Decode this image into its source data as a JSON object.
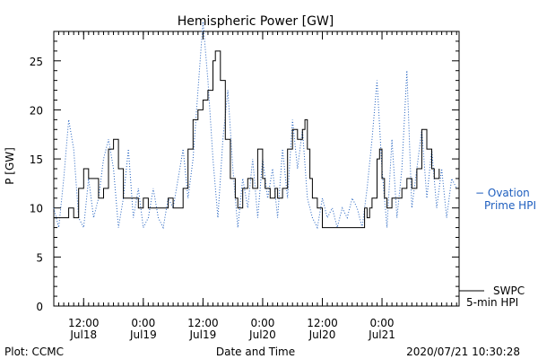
{
  "chart_data": {
    "type": "line",
    "title": "Hemispheric Power [GW]",
    "ylabel": "P [GW]",
    "xlabel": "Date and Time",
    "ylim": [
      0,
      28
    ],
    "yticks": [
      0,
      5,
      10,
      15,
      20,
      25
    ],
    "x_time_range": [
      "2020-07-18T06:00",
      "2020-07-21T15:30"
    ],
    "xticks": [
      {
        "top": "12:00",
        "bottom": "Jul18",
        "t": "2020-07-18T12:00"
      },
      {
        "top": "0:00",
        "bottom": "Jul19",
        "t": "2020-07-19T00:00"
      },
      {
        "top": "12:00",
        "bottom": "Jul19",
        "t": "2020-07-19T12:00"
      },
      {
        "top": "0:00",
        "bottom": "Jul20",
        "t": "2020-07-20T00:00"
      },
      {
        "top": "12:00",
        "bottom": "Jul20",
        "t": "2020-07-20T12:00"
      },
      {
        "top": "0:00",
        "bottom": "Jul21",
        "t": "2020-07-21T00:00"
      }
    ],
    "grid": false,
    "series": [
      {
        "name_lines": [
          "SWPC",
          "5-min HPI"
        ],
        "color": "#000000",
        "style": "solid",
        "points": [
          [
            "2020-07-18T06:00",
            9
          ],
          [
            "2020-07-18T08:00",
            9
          ],
          [
            "2020-07-18T09:00",
            10
          ],
          [
            "2020-07-18T10:00",
            9
          ],
          [
            "2020-07-18T11:00",
            12
          ],
          [
            "2020-07-18T12:00",
            14
          ],
          [
            "2020-07-18T13:00",
            13
          ],
          [
            "2020-07-18T14:00",
            13
          ],
          [
            "2020-07-18T15:00",
            11
          ],
          [
            "2020-07-18T16:00",
            12
          ],
          [
            "2020-07-18T17:00",
            16
          ],
          [
            "2020-07-18T18:00",
            17
          ],
          [
            "2020-07-18T19:00",
            14
          ],
          [
            "2020-07-18T20:00",
            11
          ],
          [
            "2020-07-18T22:00",
            11
          ],
          [
            "2020-07-18T23:00",
            10
          ],
          [
            "2020-07-19T00:00",
            11
          ],
          [
            "2020-07-19T01:00",
            10
          ],
          [
            "2020-07-19T02:00",
            10
          ],
          [
            "2020-07-19T03:00",
            10
          ],
          [
            "2020-07-19T04:00",
            10
          ],
          [
            "2020-07-19T05:00",
            11
          ],
          [
            "2020-07-19T06:00",
            10
          ],
          [
            "2020-07-19T07:00",
            10
          ],
          [
            "2020-07-19T08:00",
            12
          ],
          [
            "2020-07-19T09:00",
            16
          ],
          [
            "2020-07-19T10:00",
            19
          ],
          [
            "2020-07-19T11:00",
            20
          ],
          [
            "2020-07-19T12:00",
            21
          ],
          [
            "2020-07-19T13:00",
            22
          ],
          [
            "2020-07-19T14:00",
            25
          ],
          [
            "2020-07-19T14:30",
            26
          ],
          [
            "2020-07-19T15:30",
            23
          ],
          [
            "2020-07-19T16:30",
            17
          ],
          [
            "2020-07-19T17:30",
            13
          ],
          [
            "2020-07-19T18:30",
            11
          ],
          [
            "2020-07-19T19:00",
            10
          ],
          [
            "2020-07-19T20:00",
            12
          ],
          [
            "2020-07-19T21:00",
            13
          ],
          [
            "2020-07-19T22:00",
            12
          ],
          [
            "2020-07-19T23:00",
            16
          ],
          [
            "2020-07-20T00:00",
            13
          ],
          [
            "2020-07-20T00:30",
            12
          ],
          [
            "2020-07-20T01:30",
            11
          ],
          [
            "2020-07-20T02:30",
            12
          ],
          [
            "2020-07-20T03:00",
            11
          ],
          [
            "2020-07-20T04:00",
            12
          ],
          [
            "2020-07-20T05:00",
            16
          ],
          [
            "2020-07-20T06:00",
            18
          ],
          [
            "2020-07-20T07:00",
            17
          ],
          [
            "2020-07-20T08:00",
            18
          ],
          [
            "2020-07-20T08:30",
            19
          ],
          [
            "2020-07-20T09:00",
            16
          ],
          [
            "2020-07-20T09:30",
            13
          ],
          [
            "2020-07-20T10:00",
            11
          ],
          [
            "2020-07-20T11:00",
            10
          ],
          [
            "2020-07-20T12:00",
            8
          ],
          [
            "2020-07-20T16:00",
            8
          ],
          [
            "2020-07-20T20:00",
            8
          ],
          [
            "2020-07-20T20:30",
            10
          ],
          [
            "2020-07-20T21:00",
            9
          ],
          [
            "2020-07-20T21:30",
            10
          ],
          [
            "2020-07-20T22:00",
            11
          ],
          [
            "2020-07-20T23:00",
            15
          ],
          [
            "2020-07-20T23:30",
            16
          ],
          [
            "2020-07-21T00:00",
            13
          ],
          [
            "2020-07-21T00:30",
            11
          ],
          [
            "2020-07-21T01:00",
            10
          ],
          [
            "2020-07-21T02:00",
            11
          ],
          [
            "2020-07-21T03:00",
            11
          ],
          [
            "2020-07-21T04:00",
            12
          ],
          [
            "2020-07-21T05:00",
            13
          ],
          [
            "2020-07-21T06:00",
            12
          ],
          [
            "2020-07-21T07:00",
            14
          ],
          [
            "2020-07-21T08:00",
            18
          ],
          [
            "2020-07-21T09:00",
            16
          ],
          [
            "2020-07-21T10:00",
            14
          ],
          [
            "2020-07-21T10:30",
            13
          ],
          [
            "2020-07-21T11:00",
            13
          ],
          [
            "2020-07-21T11:30",
            14
          ]
        ]
      },
      {
        "name_lines": [
          "Ovation",
          "Prime HPI"
        ],
        "color": "#1f5fbf",
        "style": "dotted",
        "points": [
          [
            "2020-07-18T06:00",
            10
          ],
          [
            "2020-07-18T07:00",
            8
          ],
          [
            "2020-07-18T08:00",
            13
          ],
          [
            "2020-07-18T09:00",
            19
          ],
          [
            "2020-07-18T10:00",
            16
          ],
          [
            "2020-07-18T11:00",
            9
          ],
          [
            "2020-07-18T12:00",
            8
          ],
          [
            "2020-07-18T13:00",
            13
          ],
          [
            "2020-07-18T14:00",
            9
          ],
          [
            "2020-07-18T15:00",
            11
          ],
          [
            "2020-07-18T16:00",
            15
          ],
          [
            "2020-07-18T17:00",
            17
          ],
          [
            "2020-07-18T18:00",
            14
          ],
          [
            "2020-07-18T19:00",
            8
          ],
          [
            "2020-07-18T20:00",
            11
          ],
          [
            "2020-07-18T21:00",
            16
          ],
          [
            "2020-07-18T22:00",
            9
          ],
          [
            "2020-07-18T23:00",
            12
          ],
          [
            "2020-07-19T00:00",
            8
          ],
          [
            "2020-07-19T01:00",
            9
          ],
          [
            "2020-07-19T02:00",
            12
          ],
          [
            "2020-07-19T03:00",
            9
          ],
          [
            "2020-07-19T04:00",
            8
          ],
          [
            "2020-07-19T05:00",
            11
          ],
          [
            "2020-07-19T06:00",
            10
          ],
          [
            "2020-07-19T07:00",
            13
          ],
          [
            "2020-07-19T08:00",
            16
          ],
          [
            "2020-07-19T09:00",
            11
          ],
          [
            "2020-07-19T10:00",
            15
          ],
          [
            "2020-07-19T11:00",
            22
          ],
          [
            "2020-07-19T12:00",
            29
          ],
          [
            "2020-07-19T13:00",
            23
          ],
          [
            "2020-07-19T14:00",
            15
          ],
          [
            "2020-07-19T15:00",
            9
          ],
          [
            "2020-07-19T16:00",
            17
          ],
          [
            "2020-07-19T17:00",
            22
          ],
          [
            "2020-07-19T18:00",
            14
          ],
          [
            "2020-07-19T19:00",
            8
          ],
          [
            "2020-07-19T20:00",
            13
          ],
          [
            "2020-07-19T21:00",
            10
          ],
          [
            "2020-07-19T22:00",
            15
          ],
          [
            "2020-07-19T23:00",
            9
          ],
          [
            "2020-07-20T00:00",
            15
          ],
          [
            "2020-07-20T01:00",
            11
          ],
          [
            "2020-07-20T02:00",
            14
          ],
          [
            "2020-07-20T03:00",
            9
          ],
          [
            "2020-07-20T04:00",
            16
          ],
          [
            "2020-07-20T05:00",
            11
          ],
          [
            "2020-07-20T06:00",
            19
          ],
          [
            "2020-07-20T07:00",
            14
          ],
          [
            "2020-07-20T08:00",
            18
          ],
          [
            "2020-07-20T09:00",
            11
          ],
          [
            "2020-07-20T10:00",
            9
          ],
          [
            "2020-07-20T11:00",
            8
          ],
          [
            "2020-07-20T12:00",
            11
          ],
          [
            "2020-07-20T13:00",
            9
          ],
          [
            "2020-07-20T14:00",
            10
          ],
          [
            "2020-07-20T15:00",
            8
          ],
          [
            "2020-07-20T16:00",
            10
          ],
          [
            "2020-07-20T17:00",
            9
          ],
          [
            "2020-07-20T18:00",
            11
          ],
          [
            "2020-07-20T19:00",
            10
          ],
          [
            "2020-07-20T20:00",
            8
          ],
          [
            "2020-07-20T21:00",
            12
          ],
          [
            "2020-07-20T22:00",
            17
          ],
          [
            "2020-07-20T23:00",
            23
          ],
          [
            "2020-07-21T00:00",
            14
          ],
          [
            "2020-07-21T01:00",
            8
          ],
          [
            "2020-07-21T02:00",
            17
          ],
          [
            "2020-07-21T03:00",
            9
          ],
          [
            "2020-07-21T04:00",
            14
          ],
          [
            "2020-07-21T05:00",
            24
          ],
          [
            "2020-07-21T06:00",
            10
          ],
          [
            "2020-07-21T07:00",
            14
          ],
          [
            "2020-07-21T08:00",
            18
          ],
          [
            "2020-07-21T09:00",
            11
          ],
          [
            "2020-07-21T10:00",
            16
          ],
          [
            "2020-07-21T11:00",
            10
          ],
          [
            "2020-07-21T12:00",
            14
          ],
          [
            "2020-07-21T13:00",
            9
          ],
          [
            "2020-07-21T14:00",
            13
          ],
          [
            "2020-07-21T15:00",
            12
          ]
        ]
      }
    ]
  },
  "labels": {
    "ovation_prefix": "− ",
    "footer_left": "Plot: CCMC",
    "footer_right": "2020/07/21  10:30:28"
  }
}
